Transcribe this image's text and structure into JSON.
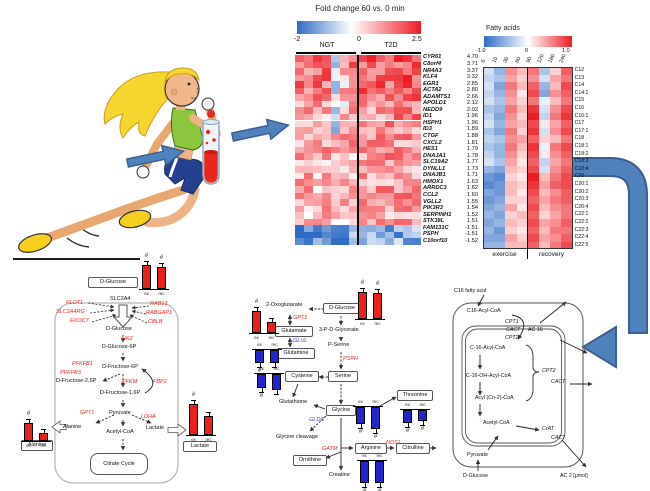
{
  "gene_heatmap": {
    "title": "Fold change 60 vs. 0 min",
    "cbar_min": "-2",
    "cbar_mid": "0",
    "cbar_max": "2.5",
    "group1": "NGT",
    "group2": "T2D",
    "genes": [
      {
        "n": "CYR61",
        "fc": 4.7,
        "v": "4.70"
      },
      {
        "n": "C8orf4",
        "fc": 3.71,
        "v": "3.71"
      },
      {
        "n": "NR4A3",
        "fc": 3.37,
        "v": "3.37"
      },
      {
        "n": "KLF4",
        "fc": 3.32,
        "v": "3.32"
      },
      {
        "n": "EGR1",
        "fc": 2.85,
        "v": "2.85"
      },
      {
        "n": "ACTA2",
        "fc": 2.8,
        "v": "2.80"
      },
      {
        "n": "ADAMTS1",
        "fc": 2.66,
        "v": "2.66"
      },
      {
        "n": "APOLD1",
        "fc": 2.12,
        "v": "2.12"
      },
      {
        "n": "NEDD9",
        "fc": 2.02,
        "v": "2.02"
      },
      {
        "n": "ID1",
        "fc": 1.96,
        "v": "1.96"
      },
      {
        "n": "HSPH1",
        "fc": 1.96,
        "v": "1.96"
      },
      {
        "n": "ID3",
        "fc": 1.89,
        "v": "1.89"
      },
      {
        "n": "CTGF",
        "fc": 1.88,
        "v": "1.88"
      },
      {
        "n": "CXCL2",
        "fc": 1.81,
        "v": "1.81"
      },
      {
        "n": "HES1",
        "fc": 1.79,
        "v": "1.79"
      },
      {
        "n": "DNAJA1",
        "fc": 1.78,
        "v": "1.78"
      },
      {
        "n": "SLC19A2",
        "fc": 1.77,
        "v": "1.77"
      },
      {
        "n": "DYNLL1",
        "fc": 1.73,
        "v": "1.73"
      },
      {
        "n": "DNAJB1",
        "fc": 1.71,
        "v": "1.71"
      },
      {
        "n": "HMOX1",
        "fc": 1.63,
        "v": "1.63"
      },
      {
        "n": "ARRDC3",
        "fc": 1.62,
        "v": "1.62"
      },
      {
        "n": "CCL2",
        "fc": 1.6,
        "v": "1.60"
      },
      {
        "n": "VGLL2",
        "fc": 1.55,
        "v": "1.55"
      },
      {
        "n": "PIK3R3",
        "fc": 1.54,
        "v": "1.54"
      },
      {
        "n": "SERPINH1",
        "fc": 1.52,
        "v": "1.52"
      },
      {
        "n": "STK38L",
        "fc": 1.51,
        "v": "1.51"
      },
      {
        "n": "FAM131C",
        "fc": -1.51,
        "v": "-1.51"
      },
      {
        "n": "PSPH",
        "fc": -1.51,
        "v": "-1.51"
      },
      {
        "n": "C10orf10",
        "fc": -1.52,
        "v": "-1.52"
      }
    ]
  },
  "fatty_heatmap": {
    "title": "Fatty acids",
    "cbar_min": "-1.0",
    "cbar_mid": "0",
    "cbar_max": "1.0",
    "time_labels": [
      "5",
      "10",
      "30",
      "60",
      "90",
      "120",
      "180",
      "240"
    ],
    "group1": "exercise",
    "group2": "recovery",
    "rows": [
      {
        "label": "C12",
        "values": [
          -0.2,
          -0.5,
          0.5,
          0.3,
          0.6,
          -0.4,
          0.2,
          0.7
        ]
      },
      {
        "label": "C13",
        "values": [
          -0.3,
          -0.4,
          0.4,
          0.2,
          0.5,
          -0.2,
          0.4,
          0.6
        ]
      },
      {
        "label": "C14",
        "values": [
          -0.2,
          -0.6,
          0.6,
          0.3,
          0.7,
          -0.5,
          0.3,
          0.8
        ]
      },
      {
        "label": "C14:1",
        "values": [
          -0.3,
          -0.5,
          0.5,
          0.1,
          0.8,
          -0.6,
          0.5,
          0.7
        ]
      },
      {
        "label": "C15",
        "values": [
          -0.2,
          -0.4,
          0.4,
          0.2,
          0.6,
          -0.1,
          0.3,
          0.6
        ]
      },
      {
        "label": "C16",
        "values": [
          -0.4,
          -0.5,
          0.6,
          0.3,
          0.9,
          -0.2,
          0.5,
          0.8
        ]
      },
      {
        "label": "C16:1",
        "values": [
          -0.3,
          -0.6,
          0.5,
          0.2,
          1.0,
          -0.3,
          0.6,
          0.9
        ]
      },
      {
        "label": "C17",
        "values": [
          -0.2,
          -0.5,
          0.4,
          0.3,
          0.8,
          0.1,
          0.4,
          0.7
        ]
      },
      {
        "label": "C17:1",
        "values": [
          -0.4,
          -0.6,
          0.6,
          0.2,
          0.9,
          -0.2,
          0.5,
          0.8
        ]
      },
      {
        "label": "C18",
        "values": [
          -0.3,
          -0.4,
          0.5,
          0.4,
          0.7,
          0.2,
          0.3,
          0.6
        ]
      },
      {
        "label": "C18:1",
        "values": [
          -0.4,
          -0.5,
          0.6,
          0.3,
          0.9,
          -0.1,
          0.6,
          0.8
        ]
      },
      {
        "label": "C18:2",
        "values": [
          -0.3,
          -0.5,
          0.5,
          0.2,
          0.8,
          0.1,
          0.5,
          0.7
        ]
      },
      {
        "label": "C18:3",
        "values": [
          -0.2,
          -0.4,
          0.4,
          0.1,
          0.7,
          -0.3,
          0.4,
          0.6
        ]
      },
      {
        "label": "C18:4",
        "values": [
          -0.5,
          -0.6,
          0.3,
          0.2,
          0.8,
          -0.2,
          0.5,
          0.7
        ]
      },
      {
        "label": "C20",
        "values": [
          -0.7,
          -0.8,
          0.2,
          0.1,
          1.0,
          0.3,
          0.6,
          0.8
        ]
      },
      {
        "label": "C20:1",
        "values": [
          -0.8,
          -0.7,
          0.3,
          0.2,
          0.9,
          0.4,
          0.7,
          0.8
        ]
      },
      {
        "label": "C20:2",
        "values": [
          -0.6,
          -0.7,
          0.3,
          0.1,
          0.8,
          0.3,
          0.5,
          0.7
        ]
      },
      {
        "label": "C20:3",
        "values": [
          -0.7,
          -0.6,
          0.2,
          0.2,
          0.7,
          0.4,
          0.6,
          0.7
        ]
      },
      {
        "label": "C20:4",
        "values": [
          -0.6,
          -0.5,
          0.4,
          0.1,
          0.8,
          0.3,
          0.5,
          0.6
        ]
      },
      {
        "label": "C22:1",
        "values": [
          -0.5,
          -0.6,
          0.2,
          0.3,
          0.7,
          0.2,
          0.4,
          0.6
        ]
      },
      {
        "label": "C22:2",
        "values": [
          -0.6,
          -0.5,
          0.3,
          0.2,
          0.8,
          0.4,
          0.5,
          0.7
        ]
      },
      {
        "label": "C22:3",
        "values": [
          -0.5,
          -0.7,
          0.2,
          0.1,
          0.7,
          0.3,
          0.6,
          0.6
        ]
      },
      {
        "label": "C22:4",
        "values": [
          -0.6,
          -0.6,
          0.4,
          0.2,
          0.8,
          0.4,
          0.5,
          0.7
        ]
      },
      {
        "label": "C22:5",
        "values": [
          -0.5,
          -0.5,
          0.3,
          0.3,
          0.7,
          0.3,
          0.6,
          0.8
        ]
      }
    ]
  },
  "colors": {
    "bar_red": "#e8211d",
    "bar_blue": "#2424cc",
    "arrow_blue": "#4f81bd",
    "arrow_edge": "#3a5f8e"
  },
  "barcharts": {
    "glucose_left": {
      "dir": "up",
      "color": "red",
      "bars": [
        {
          "label": "ex",
          "v": 0.95,
          "mark": "#"
        },
        {
          "label": "rec",
          "v": 0.9,
          "mark": "#"
        }
      ]
    },
    "alanine": {
      "dir": "up",
      "color": "red",
      "bars": [
        {
          "label": "ex",
          "v": 0.8,
          "mark": "#"
        },
        {
          "label": "rec",
          "v": 0.35
        }
      ]
    },
    "lactate": {
      "dir": "up",
      "color": "red",
      "bars": [
        {
          "label": "ex",
          "v": 1.0,
          "mark": "#"
        },
        {
          "label": "rec",
          "v": 0.6
        }
      ]
    },
    "glucose_mid": {
      "dir": "up",
      "color": "red",
      "bars": [
        {
          "label": "ex",
          "v": 1.0,
          "mark": "#"
        },
        {
          "label": "rec",
          "v": 0.95,
          "mark": "#"
        }
      ]
    },
    "glutamate": {
      "dir": "up",
      "color": "red",
      "bars": [
        {
          "label": "ex",
          "v": 0.9,
          "mark": "#"
        },
        {
          "label": "rec",
          "v": 0.45
        }
      ]
    },
    "glutamine": {
      "dir": "down",
      "color": "blue",
      "bars": [
        {
          "label": "ex",
          "v": 0.85,
          "mark": "#"
        },
        {
          "label": "rec",
          "v": 0.85
        }
      ]
    },
    "cysteine": {
      "dir": "down",
      "color": "blue",
      "bars": [
        {
          "label": "ex",
          "v": 0.85,
          "mark": "#"
        },
        {
          "label": "rec",
          "v": 0.95
        }
      ]
    },
    "glycine": {
      "dir": "down",
      "color": "blue",
      "bars": [
        {
          "label": "ex",
          "v": 0.75,
          "mark": "#"
        },
        {
          "label": "rec",
          "v": 0.95,
          "mark": "#"
        }
      ]
    },
    "threonine": {
      "dir": "down",
      "color": "blue",
      "bars": [
        {
          "label": "ex",
          "v": 0.85,
          "mark": "#"
        },
        {
          "label": "rec",
          "v": 0.75,
          "mark": "#"
        }
      ]
    },
    "arginine": {
      "dir": "down",
      "color": "blue",
      "bars": [
        {
          "label": "ex",
          "v": 0.95,
          "mark": "#"
        },
        {
          "label": "rec",
          "v": 0.95,
          "mark": "#"
        }
      ]
    }
  },
  "pathway_left": {
    "glucose_box": "D-Glucose",
    "slc2a4": "SLC2A4",
    "flot1": "FLOT1",
    "slc2a4rg": "SLC2A4RG",
    "exoc7": "EXOC7",
    "rab13": "RAB13",
    "rabgap1": "RABGAP1",
    "cblb": "CBLB",
    "glucose": "D-Glucose",
    "hk2": "HK2",
    "g6p": "D-Glucose-6P",
    "pfkfb1": "PFKFB1",
    "pfkfb3": "PFKFB3",
    "f6p": "D-Fructose-6P",
    "f26p": "D-Fructose-2,6P",
    "pfkm": "PFKM",
    "fbp2": "FBP2",
    "f16p": "D-Fructose-1,6P",
    "pyruvate": "Pyruvate",
    "gpt1": "GPT1",
    "ldha": "LDHA",
    "alanine": "Alanine",
    "lactate": "Lactate",
    "acetylcoa": "Acetyl-CoA",
    "citrate": "Citrate Cycle",
    "alanine_box": "Alanine",
    "lactate_box": "Lactate"
  },
  "pathway_mid": {
    "oxoglutarate": "2-Oxoglutarate",
    "glucose_box": "D-Glucose",
    "gpt1": "GPT1",
    "glutamate": "Glutamate",
    "glul": "GLUL",
    "glutamine": "Glutamine",
    "glycerate": "3-P-D-Glycerate",
    "pserine": "P-Serine",
    "psph": "PSPH",
    "serine": "Serine",
    "cysteine": "Cysteine",
    "glutathione": "Glutathione",
    "glycine": "Glycine",
    "gldc": "GLDC",
    "cleavage": "Glycine cleavage",
    "gatm": "GATM",
    "ornithine": "Ornithine",
    "creatine": "Creatine",
    "arginine": "Arginine",
    "nos1": "NOS1",
    "citrulline": "Citrulline",
    "threonine": "Threonine"
  },
  "pathway_right": {
    "c16fa": "C16 fatty acid",
    "c16acyl": "C16-Acyl-CoA",
    "cpt1": "CPT1",
    "cact": "CACT",
    "ac16": "AC 16",
    "cpt2": "CPT2",
    "c16acyl_in": "C-16-Acyl-CoA",
    "c16oh": "C-16-OH-Acyl-CoA",
    "acyln2": "Acyl (Cn-2)-CoA",
    "acetylcoa": "Acetyl-CoA",
    "cpt2b": "CPT2",
    "crat": "CrAT",
    "cact2": "CACT",
    "cact3": "CACT",
    "pyruvate": "Pyruvate",
    "glucose": "D-Glucose",
    "ac2": "AC 2 [μmol]"
  }
}
